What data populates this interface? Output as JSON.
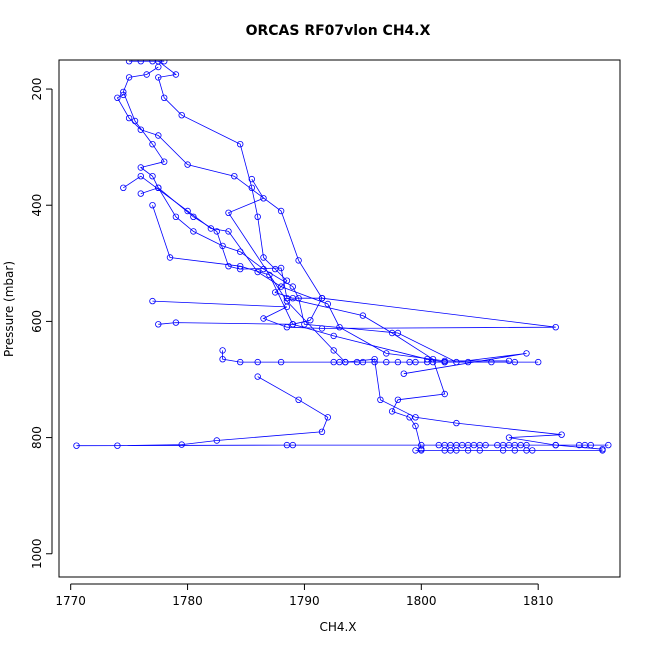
{
  "chart_data": {
    "type": "scatter",
    "title": "ORCAS RF07vlon CH4.X",
    "xlabel": "CH4.X",
    "ylabel": "Pressure (mbar)",
    "xlim": [
      1769,
      1817
    ],
    "ylim": [
      1040,
      150
    ],
    "y_inverted": true,
    "grid": false,
    "x_ticks": [
      1770,
      1780,
      1790,
      1800,
      1810
    ],
    "y_ticks": [
      200,
      400,
      600,
      800,
      1000
    ],
    "series_color": "#0000ff",
    "series": [
      {
        "style": "line+points",
        "points": [
          [
            1775,
            152
          ],
          [
            1776,
            152
          ],
          [
            1777,
            152
          ],
          [
            1778,
            152
          ],
          [
            1777.5,
            152
          ],
          [
            1779,
            175
          ],
          [
            1777.5,
            180
          ],
          [
            1778,
            215
          ],
          [
            1779.5,
            245
          ],
          [
            1784.5,
            295
          ],
          [
            1785.5,
            370
          ],
          [
            1786,
            420
          ],
          [
            1786.5,
            490
          ],
          [
            1787.5,
            510
          ],
          [
            1788.5,
            530
          ],
          [
            1787.5,
            550
          ],
          [
            1789,
            560
          ],
          [
            1791.5,
            560
          ],
          [
            1811.5,
            610
          ],
          [
            1791.5,
            612
          ],
          [
            1788.5,
            610
          ],
          [
            1786.5,
            595
          ],
          [
            1788.5,
            575
          ],
          [
            1777,
            565
          ]
        ]
      },
      {
        "style": "line+points",
        "points": [
          [
            1774.5,
            210
          ],
          [
            1774,
            215
          ],
          [
            1775,
            250
          ],
          [
            1776,
            270
          ],
          [
            1777.5,
            280
          ],
          [
            1780,
            330
          ],
          [
            1784,
            350
          ],
          [
            1788,
            410
          ],
          [
            1789.5,
            495
          ],
          [
            1791.5,
            560
          ],
          [
            1790.5,
            598
          ],
          [
            1789,
            605
          ],
          [
            1779,
            602
          ],
          [
            1777.5,
            605
          ]
        ]
      },
      {
        "style": "line+points",
        "points": [
          [
            1777.5,
            162
          ],
          [
            1776.5,
            175
          ],
          [
            1775,
            180
          ],
          [
            1774.5,
            205
          ],
          [
            1775.5,
            255
          ],
          [
            1777,
            295
          ],
          [
            1778,
            325
          ],
          [
            1776,
            335
          ],
          [
            1777,
            350
          ],
          [
            1777.5,
            370
          ],
          [
            1779,
            420
          ],
          [
            1780.5,
            445
          ],
          [
            1783,
            470
          ],
          [
            1784.5,
            480
          ],
          [
            1786.5,
            510
          ],
          [
            1789,
            540
          ],
          [
            1789.5,
            560
          ],
          [
            1790,
            605
          ],
          [
            1798,
            620
          ],
          [
            1803,
            670
          ],
          [
            1809,
            655
          ],
          [
            1798.5,
            690
          ]
        ]
      },
      {
        "style": "line+points",
        "points": [
          [
            1776,
            380
          ],
          [
            1777.5,
            370
          ],
          [
            1780.5,
            420
          ],
          [
            1782.5,
            445
          ],
          [
            1783.5,
            505
          ],
          [
            1784.5,
            510
          ],
          [
            1788,
            508
          ],
          [
            1788.5,
            560
          ],
          [
            1795,
            590
          ],
          [
            1797.5,
            620
          ],
          [
            1801,
            665
          ],
          [
            1802,
            725
          ],
          [
            1798,
            735
          ],
          [
            1797.5,
            755
          ],
          [
            1799,
            765
          ],
          [
            1799.5,
            780
          ],
          [
            1800,
            820
          ]
        ]
      },
      {
        "style": "line+points",
        "points": [
          [
            1774.5,
            370
          ],
          [
            1776,
            350
          ],
          [
            1780,
            410
          ],
          [
            1782,
            440
          ],
          [
            1783.5,
            445
          ],
          [
            1786,
            515
          ],
          [
            1788,
            540
          ],
          [
            1792,
            570
          ],
          [
            1793,
            610
          ],
          [
            1797,
            655
          ],
          [
            1802,
            668
          ],
          [
            1807.5,
            668
          ]
        ]
      },
      {
        "style": "line+points",
        "points": [
          [
            1777,
            400
          ],
          [
            1778.5,
            490
          ],
          [
            1784.5,
            505
          ],
          [
            1787,
            520
          ],
          [
            1789,
            605
          ],
          [
            1792.5,
            625
          ],
          [
            1800.5,
            665
          ],
          [
            1802,
            670
          ],
          [
            1810,
            670
          ]
        ]
      },
      {
        "style": "line+points",
        "points": [
          [
            1785.5,
            355
          ],
          [
            1786.5,
            388
          ],
          [
            1783.5,
            413
          ],
          [
            1788.5,
            565
          ],
          [
            1792.5,
            650
          ],
          [
            1793.5,
            670
          ],
          [
            1796,
            665
          ],
          [
            1796.5,
            735
          ],
          [
            1799.5,
            765
          ],
          [
            1803,
            775
          ],
          [
            1812,
            795
          ],
          [
            1807.5,
            800
          ],
          [
            1811.5,
            813
          ],
          [
            1815.5,
            820
          ]
        ]
      },
      {
        "style": "line+points",
        "points": [
          [
            1783,
            650
          ],
          [
            1783,
            665
          ],
          [
            1784.5,
            670
          ],
          [
            1786,
            670
          ],
          [
            1788,
            670
          ],
          [
            1792.5,
            670
          ],
          [
            1793,
            670
          ],
          [
            1793.5,
            670
          ],
          [
            1794.5,
            670
          ],
          [
            1795,
            670
          ],
          [
            1796,
            670
          ],
          [
            1797,
            670
          ],
          [
            1798,
            670
          ],
          [
            1799,
            670
          ],
          [
            1799.5,
            670
          ],
          [
            1800.5,
            670
          ],
          [
            1801,
            670
          ],
          [
            1802,
            670
          ],
          [
            1804,
            670
          ],
          [
            1806,
            670
          ],
          [
            1808,
            670
          ]
        ]
      },
      {
        "style": "line+points",
        "points": [
          [
            1786,
            695
          ],
          [
            1789.5,
            735
          ],
          [
            1792,
            765
          ],
          [
            1791.5,
            790
          ],
          [
            1782.5,
            805
          ],
          [
            1779.5,
            812
          ],
          [
            1774,
            814
          ],
          [
            1770.5,
            814
          ],
          [
            1788.5,
            813
          ],
          [
            1789,
            813
          ],
          [
            1800,
            813
          ],
          [
            1801.5,
            813
          ],
          [
            1802,
            813
          ],
          [
            1802.5,
            813
          ],
          [
            1803,
            813
          ],
          [
            1803.5,
            813
          ],
          [
            1804,
            813
          ],
          [
            1804.5,
            813
          ],
          [
            1805,
            813
          ],
          [
            1805.5,
            813
          ],
          [
            1806.5,
            813
          ],
          [
            1807,
            813
          ],
          [
            1807.5,
            813
          ],
          [
            1808,
            813
          ],
          [
            1808.5,
            813
          ],
          [
            1809,
            813
          ],
          [
            1811.5,
            813
          ],
          [
            1813.5,
            813
          ],
          [
            1814,
            813
          ],
          [
            1814.5,
            813
          ],
          [
            1816,
            813
          ]
        ]
      },
      {
        "style": "line+points",
        "points": [
          [
            1799.5,
            822
          ],
          [
            1800,
            822
          ],
          [
            1802,
            822
          ],
          [
            1802.5,
            822
          ],
          [
            1803,
            822
          ],
          [
            1804,
            822
          ],
          [
            1805,
            822
          ],
          [
            1807,
            822
          ],
          [
            1808,
            822
          ],
          [
            1809,
            822
          ],
          [
            1809.5,
            822
          ],
          [
            1815.5,
            822
          ]
        ]
      }
    ]
  }
}
